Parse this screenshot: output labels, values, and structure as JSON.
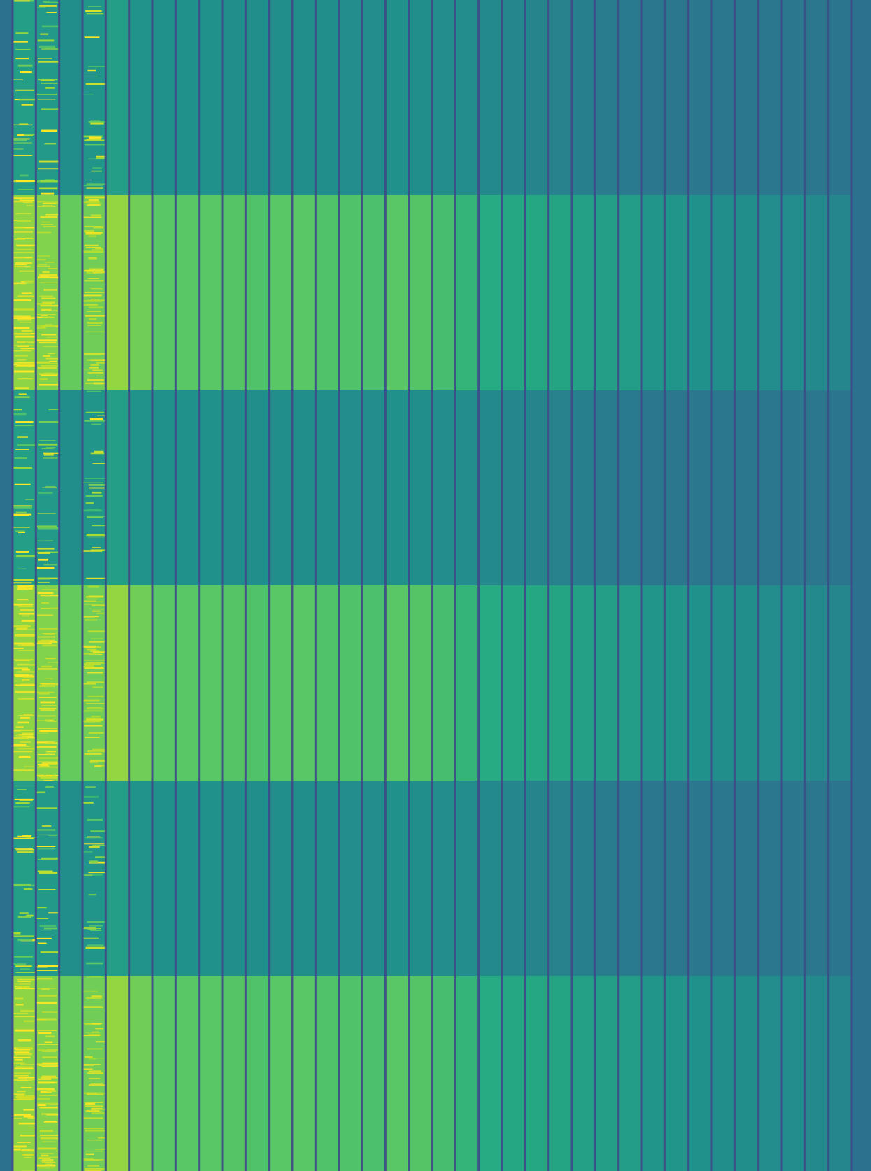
{
  "chart_data": {
    "type": "heatmap",
    "colormap": "viridis",
    "value_range": [
      0,
      1
    ],
    "grid": false,
    "rows": 6,
    "columns": 36,
    "row_groups": [
      "low",
      "high",
      "low",
      "high",
      "low",
      "high"
    ],
    "column_values_low": [
      0.56,
      0.54,
      0.49,
      0.52,
      0.56,
      0.51,
      0.5,
      0.5,
      0.5,
      0.49,
      0.49,
      0.49,
      0.49,
      0.49,
      0.48,
      0.48,
      0.5,
      0.49,
      0.48,
      0.48,
      0.47,
      0.46,
      0.45,
      0.44,
      0.43,
      0.42,
      0.41,
      0.4,
      0.4,
      0.4,
      0.4,
      0.4,
      0.4,
      0.4,
      0.4,
      0.39
    ],
    "column_values_high": [
      0.83,
      0.81,
      0.76,
      0.78,
      0.84,
      0.78,
      0.74,
      0.74,
      0.74,
      0.73,
      0.72,
      0.74,
      0.74,
      0.72,
      0.72,
      0.71,
      0.74,
      0.73,
      0.7,
      0.66,
      0.62,
      0.6,
      0.6,
      0.59,
      0.57,
      0.56,
      0.55,
      0.52,
      0.52,
      0.5,
      0.49,
      0.49,
      0.48,
      0.48,
      0.47,
      0.46
    ],
    "separator_value": 0.22,
    "noisy_columns": [
      0,
      1,
      3
    ],
    "colors": {
      "background": "#2c728e",
      "low_band": "#21918c",
      "high_band": "#5ec962",
      "separator": "#3b528b",
      "peak": "#fde725"
    }
  }
}
